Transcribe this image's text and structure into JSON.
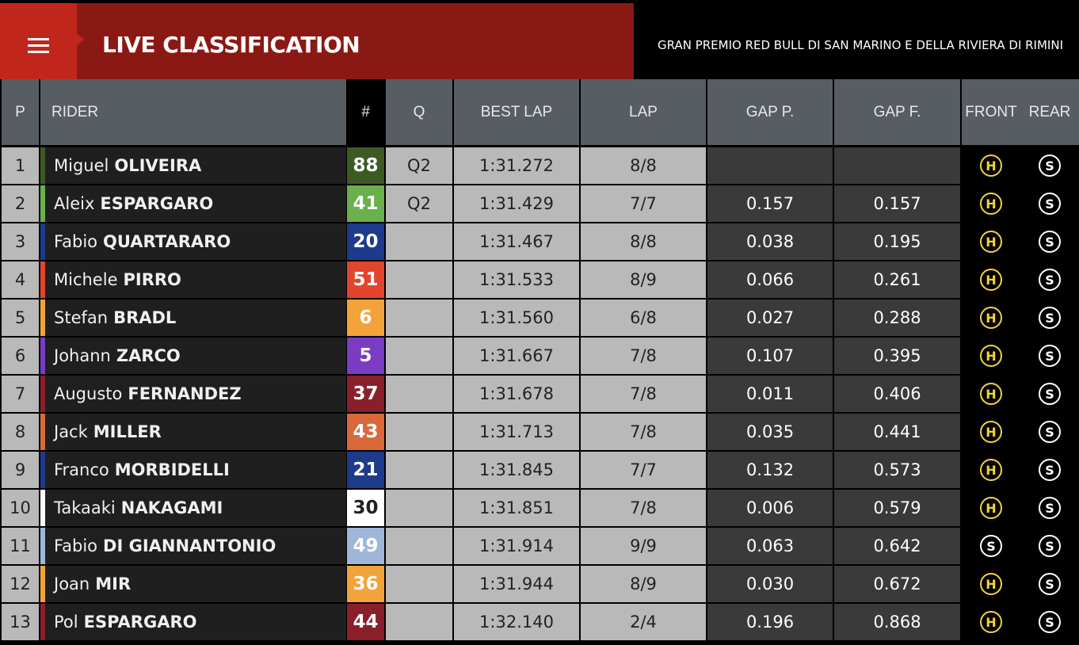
{
  "header": {
    "title": "LIVE CLASSIFICATION",
    "event": "GRAN PREMIO RED BULL DI SAN MARINO E DELLA RIVIERA DI RIMINI",
    "accent_color": "#c0261c",
    "title_bg_color": "#8a1914"
  },
  "columns": {
    "pos": "P",
    "rider": "RIDER",
    "num": "#",
    "q": "Q",
    "best_lap": "BEST LAP",
    "lap": "LAP",
    "gap_p": "GAP P.",
    "gap_f": "GAP F.",
    "front": "FRONT",
    "rear": "REAR"
  },
  "rows": [
    {
      "pos": "1",
      "first": "Miguel",
      "last": "OLIVEIRA",
      "num": "88",
      "team_color": "#3d5a23",
      "num_text_color": "#ffffff",
      "q": "Q2",
      "best_lap": "1:31.272",
      "lap": "8/8",
      "gap_p": "",
      "gap_f": "",
      "front": "H",
      "rear": "S"
    },
    {
      "pos": "2",
      "first": "Aleix",
      "last": "ESPARGARO",
      "num": "41",
      "team_color": "#6ab04c",
      "num_text_color": "#ffffff",
      "q": "Q2",
      "best_lap": "1:31.429",
      "lap": "7/7",
      "gap_p": "0.157",
      "gap_f": "0.157",
      "front": "H",
      "rear": "S"
    },
    {
      "pos": "3",
      "first": "Fabio",
      "last": "QUARTARARO",
      "num": "20",
      "team_color": "#1d3a8c",
      "num_text_color": "#ffffff",
      "q": "",
      "best_lap": "1:31.467",
      "lap": "8/8",
      "gap_p": "0.038",
      "gap_f": "0.195",
      "front": "H",
      "rear": "S"
    },
    {
      "pos": "4",
      "first": "Michele",
      "last": "PIRRO",
      "num": "51",
      "team_color": "#e2442e",
      "num_text_color": "#ffffff",
      "q": "",
      "best_lap": "1:31.533",
      "lap": "8/9",
      "gap_p": "0.066",
      "gap_f": "0.261",
      "front": "H",
      "rear": "S"
    },
    {
      "pos": "5",
      "first": "Stefan",
      "last": "BRADL",
      "num": "6",
      "team_color": "#f2a33a",
      "num_text_color": "#ffffff",
      "q": "",
      "best_lap": "1:31.560",
      "lap": "6/8",
      "gap_p": "0.027",
      "gap_f": "0.288",
      "front": "H",
      "rear": "S"
    },
    {
      "pos": "6",
      "first": "Johann",
      "last": "ZARCO",
      "num": "5",
      "team_color": "#7a3cc2",
      "num_text_color": "#ffffff",
      "q": "",
      "best_lap": "1:31.667",
      "lap": "7/8",
      "gap_p": "0.107",
      "gap_f": "0.395",
      "front": "H",
      "rear": "S"
    },
    {
      "pos": "7",
      "first": "Augusto",
      "last": "FERNANDEZ",
      "num": "37",
      "team_color": "#8a1f2b",
      "num_text_color": "#ffffff",
      "q": "",
      "best_lap": "1:31.678",
      "lap": "7/8",
      "gap_p": "0.011",
      "gap_f": "0.406",
      "front": "H",
      "rear": "S"
    },
    {
      "pos": "8",
      "first": "Jack",
      "last": "MILLER",
      "num": "43",
      "team_color": "#d9683a",
      "num_text_color": "#ffffff",
      "q": "",
      "best_lap": "1:31.713",
      "lap": "7/8",
      "gap_p": "0.035",
      "gap_f": "0.441",
      "front": "H",
      "rear": "S"
    },
    {
      "pos": "9",
      "first": "Franco",
      "last": "MORBIDELLI",
      "num": "21",
      "team_color": "#1d3a8c",
      "num_text_color": "#ffffff",
      "q": "",
      "best_lap": "1:31.845",
      "lap": "7/7",
      "gap_p": "0.132",
      "gap_f": "0.573",
      "front": "H",
      "rear": "S"
    },
    {
      "pos": "10",
      "first": "Takaaki",
      "last": "NAKAGAMI",
      "num": "30",
      "team_color": "#ffffff",
      "num_text_color": "#222222",
      "q": "",
      "best_lap": "1:31.851",
      "lap": "7/8",
      "gap_p": "0.006",
      "gap_f": "0.579",
      "front": "H",
      "rear": "S"
    },
    {
      "pos": "11",
      "first": "Fabio",
      "last": "DI GIANNANTONIO",
      "num": "49",
      "team_color": "#9fb6d9",
      "num_text_color": "#ffffff",
      "q": "",
      "best_lap": "1:31.914",
      "lap": "9/9",
      "gap_p": "0.063",
      "gap_f": "0.642",
      "front": "S",
      "rear": "S"
    },
    {
      "pos": "12",
      "first": "Joan",
      "last": "MIR",
      "num": "36",
      "team_color": "#f2a33a",
      "num_text_color": "#ffffff",
      "q": "",
      "best_lap": "1:31.944",
      "lap": "8/9",
      "gap_p": "0.030",
      "gap_f": "0.672",
      "front": "H",
      "rear": "S"
    },
    {
      "pos": "13",
      "first": "Pol",
      "last": "ESPARGARO",
      "num": "44",
      "team_color": "#8a1f2b",
      "num_text_color": "#ffffff",
      "q": "",
      "best_lap": "1:32.140",
      "lap": "2/4",
      "gap_p": "0.196",
      "gap_f": "0.868",
      "front": "H",
      "rear": "S"
    }
  ],
  "tyre_colors": {
    "H": "#f2d33d",
    "S": "#ffffff"
  }
}
